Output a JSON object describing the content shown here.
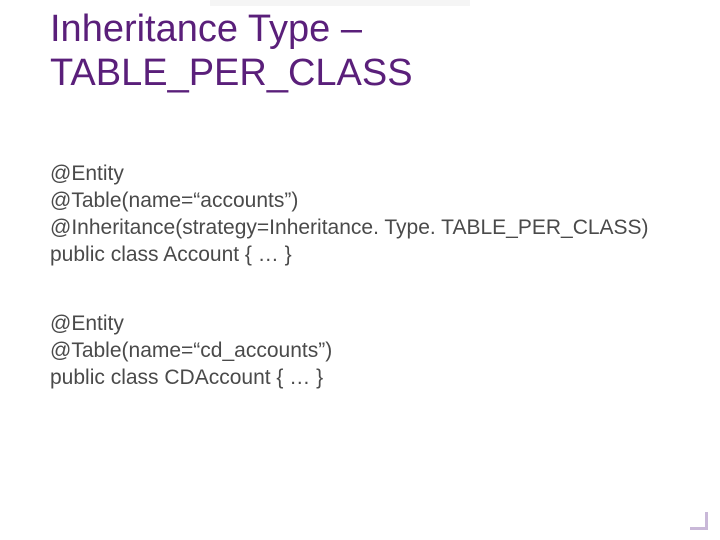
{
  "colors": {
    "title": "#5a1f7a",
    "body": "#4a4a4a",
    "background": "#ffffff",
    "corner_accent": "#c9b8d8"
  },
  "typography": {
    "title_fontsize": 38,
    "body_fontsize": 21,
    "font_family": "Verdana"
  },
  "title": {
    "line1": "Inheritance Type –",
    "line2": "TABLE_PER_CLASS"
  },
  "blocks": [
    {
      "lines": [
        "@Entity",
        "@Table(name=“accounts”)",
        "@Inheritance(strategy=Inheritance. Type. TABLE_PER_CLASS)",
        "public class Account { … }"
      ]
    },
    {
      "lines": [
        "@Entity",
        "@Table(name=“cd_accounts”)",
        "public class CDAccount { … }"
      ]
    }
  ]
}
